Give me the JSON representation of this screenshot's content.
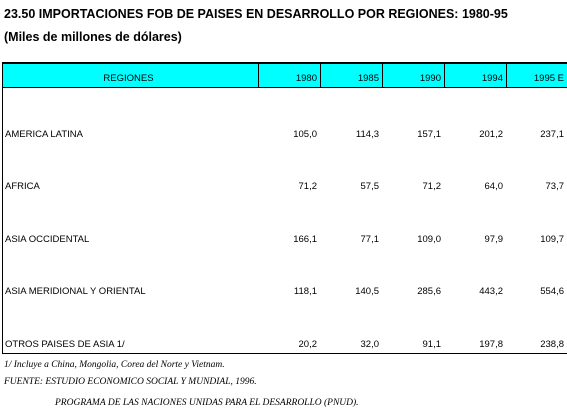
{
  "header": {
    "title": "23.50  IMPORTACIONES FOB DE PAISES EN DESARROLLO POR REGIONES: 1980-95",
    "subtitle": "(Miles de millones de dólares)"
  },
  "table": {
    "columns": [
      "REGIONES",
      "1980",
      "1985",
      "1990",
      "1994",
      "1995 E"
    ],
    "rows": [
      [
        "AMERICA LATINA",
        "105,0",
        "114,3",
        "157,1",
        "201,2",
        "237,1"
      ],
      [
        "AFRICA",
        "71,2",
        "57,5",
        "71,2",
        "64,0",
        "73,7"
      ],
      [
        "ASIA OCCIDENTAL",
        "166,1",
        "77,1",
        "109,0",
        "97,9",
        "109,7"
      ],
      [
        "ASIA MERIDIONAL Y ORIENTAL",
        "118,1",
        "140,5",
        "285,6",
        "443,2",
        "554,6"
      ],
      [
        "OTROS PAISES DE ASIA 1/",
        "20,2",
        "32,0",
        "91,1",
        "197,8",
        "238,8"
      ]
    ]
  },
  "footnotes": [
    "1/ Incluye a China, Mongolia, Corea del Norte y Vietnam.",
    "FUENTE: ESTUDIO ECONOMICO SOCIAL Y MUNDIAL, 1996.",
    "PROGRAMA DE LAS NACIONES UNIDAS PARA EL DESARROLLO (PNUD)."
  ]
}
